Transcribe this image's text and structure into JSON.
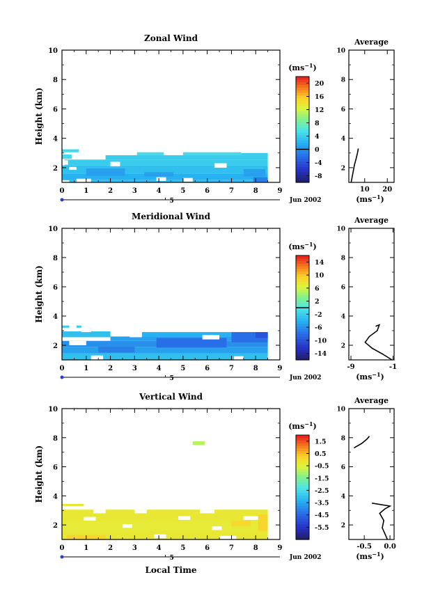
{
  "chart_data": [
    {
      "type": "heatmap",
      "title": "Zonal Wind",
      "ylabel": "Height (km)",
      "xlabel": "",
      "xlim": [
        0,
        9
      ],
      "ylim": [
        1,
        10
      ],
      "x_ticks": [
        "0",
        "1",
        "2",
        "3",
        "4",
        "5",
        "6",
        "7",
        "8",
        "9"
      ],
      "y_ticks": [
        "2",
        "4",
        "6",
        "8",
        "10"
      ],
      "date_label": "Jun 2002",
      "day_marker": "5",
      "colorbar": {
        "unit": "(ms",
        "unit_exp": "−1",
        "unit_close": ")",
        "vmin": -10,
        "vmax": 22,
        "ticks": [
          "20",
          "16",
          "12",
          "8",
          "4",
          "0",
          "-4",
          "-8"
        ],
        "tick_values": [
          20,
          16,
          12,
          8,
          4,
          0,
          -4,
          -8
        ],
        "zero_line": 0
      },
      "field": [
        {
          "x0": 0.0,
          "x1": 0.7,
          "y0": 3.05,
          "y1": 3.25,
          "v": 5
        },
        {
          "x0": 0.0,
          "x1": 0.4,
          "y0": 2.6,
          "y1": 2.9,
          "v": 5
        },
        {
          "x0": 3.1,
          "x1": 4.2,
          "y0": 2.85,
          "y1": 3.05,
          "v": 5
        },
        {
          "x0": 5.0,
          "x1": 7.4,
          "y0": 2.85,
          "y1": 3.05,
          "v": 5
        },
        {
          "x0": 7.4,
          "x1": 8.5,
          "y0": 2.85,
          "y1": 3.0,
          "v": 4
        },
        {
          "x0": 1.8,
          "x1": 8.5,
          "y0": 2.55,
          "y1": 2.85,
          "v": 4
        },
        {
          "x0": 0.1,
          "x1": 8.5,
          "y0": 2.15,
          "y1": 2.55,
          "v": 4
        },
        {
          "x0": 0.0,
          "x1": 8.5,
          "y0": 1.6,
          "y1": 2.15,
          "v": 3
        },
        {
          "x0": 0.0,
          "x1": 8.5,
          "y0": 1.15,
          "y1": 1.6,
          "v": 2
        },
        {
          "x0": 0.3,
          "x1": 8.3,
          "y0": 1.0,
          "y1": 1.15,
          "v": 3
        },
        {
          "x0": 1.0,
          "x1": 2.6,
          "y0": 1.45,
          "y1": 1.95,
          "v": 1
        },
        {
          "x0": 3.4,
          "x1": 4.6,
          "y0": 1.4,
          "y1": 1.7,
          "v": 1
        },
        {
          "x0": 7.5,
          "x1": 8.4,
          "y0": 1.4,
          "y1": 1.9,
          "v": 1
        },
        {
          "x0": 7.9,
          "x1": 8.5,
          "y0": 1.0,
          "y1": 1.35,
          "v": -1
        }
      ],
      "gaps": [
        {
          "x0": 0.0,
          "x1": 0.25,
          "y0": 2.2,
          "y1": 2.5
        },
        {
          "x0": 0.6,
          "x1": 1.2,
          "y0": 1.0,
          "y1": 1.25
        },
        {
          "x0": 2.0,
          "x1": 2.4,
          "y0": 2.1,
          "y1": 2.4
        },
        {
          "x0": 6.3,
          "x1": 6.8,
          "y0": 2.0,
          "y1": 2.3
        },
        {
          "x0": 5.0,
          "x1": 5.4,
          "y0": 1.05,
          "y1": 1.3
        },
        {
          "x0": 3.9,
          "x1": 4.3,
          "y0": 1.1,
          "y1": 1.35
        },
        {
          "x0": 0.3,
          "x1": 0.6,
          "y0": 1.85,
          "y1": 2.05
        }
      ],
      "average": {
        "title": "Average",
        "xlabel": "(ms",
        "xlabel_exp": "−1",
        "xlabel_close": ")",
        "xlim": [
          3,
          23
        ],
        "x_ticks": [
          "10",
          "20"
        ],
        "x_tick_values": [
          10,
          20
        ],
        "y_ticks": [
          "2",
          "4",
          "6",
          "8",
          "10"
        ],
        "profile": [
          [
            4.0,
            1.0
          ],
          [
            4.5,
            1.4
          ],
          [
            5.0,
            1.8
          ],
          [
            5.5,
            2.2
          ],
          [
            6.2,
            2.6
          ],
          [
            6.8,
            3.0
          ],
          [
            7.2,
            3.3
          ]
        ]
      }
    },
    {
      "type": "heatmap",
      "title": "Meridional Wind",
      "ylabel": "Height (km)",
      "xlabel": "",
      "xlim": [
        0,
        9
      ],
      "ylim": [
        1,
        10
      ],
      "x_ticks": [
        "0",
        "1",
        "2",
        "3",
        "4",
        "5",
        "6",
        "7",
        "8",
        "9"
      ],
      "y_ticks": [
        "2",
        "4",
        "6",
        "8",
        "10"
      ],
      "date_label": "Jun 2002",
      "day_marker": "5",
      "colorbar": {
        "unit": "(ms",
        "unit_exp": "−1",
        "unit_close": ")",
        "vmin": -16,
        "vmax": 16,
        "ticks": [
          "14",
          "10",
          "6",
          "2",
          "-2",
          "-6",
          "-10",
          "-14"
        ],
        "tick_values": [
          14,
          10,
          6,
          2,
          -2,
          -6,
          -10,
          -14
        ],
        "zero_line": 0
      },
      "field": [
        {
          "x0": 0.0,
          "x1": 0.3,
          "y0": 3.2,
          "y1": 3.35,
          "v": -2
        },
        {
          "x0": 0.6,
          "x1": 0.8,
          "y0": 3.2,
          "y1": 3.35,
          "v": -2
        },
        {
          "x0": 0.0,
          "x1": 2.0,
          "y0": 2.55,
          "y1": 2.95,
          "v": -3
        },
        {
          "x0": 3.3,
          "x1": 8.5,
          "y0": 2.6,
          "y1": 2.9,
          "v": -4
        },
        {
          "x0": 2.0,
          "x1": 8.5,
          "y0": 2.3,
          "y1": 2.6,
          "v": -5
        },
        {
          "x0": 0.0,
          "x1": 8.5,
          "y0": 1.9,
          "y1": 2.3,
          "v": -6
        },
        {
          "x0": 0.0,
          "x1": 8.5,
          "y0": 1.45,
          "y1": 1.9,
          "v": -5
        },
        {
          "x0": 0.0,
          "x1": 8.5,
          "y0": 1.0,
          "y1": 1.45,
          "v": -3
        },
        {
          "x0": 3.9,
          "x1": 6.8,
          "y0": 1.85,
          "y1": 2.5,
          "v": -8
        },
        {
          "x0": 7.0,
          "x1": 8.5,
          "y0": 2.2,
          "y1": 2.9,
          "v": -8
        },
        {
          "x0": 8.0,
          "x1": 8.5,
          "y0": 2.5,
          "y1": 2.9,
          "v": -10
        },
        {
          "x0": 1.5,
          "x1": 3.0,
          "y0": 1.5,
          "y1": 1.9,
          "v": -7
        }
      ],
      "gaps": [
        {
          "x0": 0.3,
          "x1": 1.0,
          "y0": 2.0,
          "y1": 2.3
        },
        {
          "x0": 1.2,
          "x1": 1.7,
          "y0": 1.0,
          "y1": 1.3
        },
        {
          "x0": 5.8,
          "x1": 6.5,
          "y0": 2.4,
          "y1": 2.7
        },
        {
          "x0": 2.8,
          "x1": 3.3,
          "y0": 2.55,
          "y1": 2.9
        },
        {
          "x0": 0.8,
          "x1": 1.2,
          "y0": 2.9,
          "y1": 3.2
        },
        {
          "x0": 7.1,
          "x1": 7.5,
          "y0": 1.0,
          "y1": 1.25
        }
      ],
      "average": {
        "title": "Average",
        "xlabel": "(ms",
        "xlabel_exp": "−1",
        "xlabel_close": ")",
        "xlim": [
          -9.4,
          -0.8
        ],
        "x_ticks": [
          "-9",
          "-1"
        ],
        "x_tick_values": [
          -9,
          -1
        ],
        "y_ticks": [
          "2",
          "4",
          "6",
          "8",
          "10"
        ],
        "profile": [
          [
            -1.2,
            1.0
          ],
          [
            -3.0,
            1.4
          ],
          [
            -5.0,
            1.8
          ],
          [
            -6.3,
            2.2
          ],
          [
            -5.5,
            2.6
          ],
          [
            -4.0,
            3.0
          ],
          [
            -3.6,
            3.4
          ],
          [
            -4.3,
            3.3
          ]
        ]
      }
    },
    {
      "type": "heatmap",
      "title": "Vertical Wind",
      "ylabel": "Height (km)",
      "xlabel": "Local Time",
      "xlim": [
        0,
        9
      ],
      "ylim": [
        1,
        10
      ],
      "x_ticks": [
        "0",
        "1",
        "2",
        "3",
        "4",
        "5",
        "6",
        "7",
        "8",
        "9"
      ],
      "y_ticks": [
        "2",
        "4",
        "6",
        "8",
        "10"
      ],
      "date_label": "Jun 2002",
      "day_marker": "5",
      "colorbar": {
        "unit": "(ms",
        "unit_exp": "−1",
        "unit_close": ")",
        "vmin": -6.5,
        "vmax": 2.0,
        "ticks": [
          "1.5",
          "0.5",
          "-0.5",
          "-1.5",
          "-2.5",
          "-3.5",
          "-4.5",
          "-5.5"
        ],
        "tick_values": [
          1.5,
          0.5,
          -0.5,
          -1.5,
          -2.5,
          -3.5,
          -4.5,
          -5.5
        ],
        "zero_line": null
      },
      "field": [
        {
          "x0": 0.0,
          "x1": 0.9,
          "y0": 3.3,
          "y1": 3.45,
          "v": -0.2
        },
        {
          "x0": 0.0,
          "x1": 8.5,
          "y0": 2.7,
          "y1": 3.05,
          "v": -0.2
        },
        {
          "x0": 0.0,
          "x1": 8.5,
          "y0": 2.2,
          "y1": 2.7,
          "v": -0.2
        },
        {
          "x0": 0.0,
          "x1": 8.5,
          "y0": 1.6,
          "y1": 2.2,
          "v": -0.3
        },
        {
          "x0": 0.0,
          "x1": 8.5,
          "y0": 1.0,
          "y1": 1.6,
          "v": -0.2
        },
        {
          "x0": 0.2,
          "x1": 1.8,
          "y0": 1.0,
          "y1": 1.3,
          "v": 0.2
        },
        {
          "x0": 8.1,
          "x1": 8.5,
          "y0": 1.6,
          "y1": 2.7,
          "v": 0.2
        },
        {
          "x0": 7.0,
          "x1": 7.8,
          "y0": 1.9,
          "y1": 2.3,
          "v": 0.1
        },
        {
          "x0": 5.4,
          "x1": 5.9,
          "y0": 7.5,
          "y1": 7.75,
          "v": -0.9
        }
      ],
      "gaps": [
        {
          "x0": 1.3,
          "x1": 1.8,
          "y0": 2.8,
          "y1": 3.05
        },
        {
          "x0": 3.0,
          "x1": 3.5,
          "y0": 2.8,
          "y1": 3.05
        },
        {
          "x0": 5.7,
          "x1": 6.3,
          "y0": 2.8,
          "y1": 3.05
        },
        {
          "x0": 0.9,
          "x1": 1.4,
          "y0": 2.3,
          "y1": 2.55
        },
        {
          "x0": 4.8,
          "x1": 5.3,
          "y0": 2.35,
          "y1": 2.6
        },
        {
          "x0": 7.5,
          "x1": 8.1,
          "y0": 2.35,
          "y1": 2.6
        },
        {
          "x0": 2.5,
          "x1": 2.9,
          "y0": 1.8,
          "y1": 2.05
        },
        {
          "x0": 6.2,
          "x1": 6.6,
          "y0": 1.65,
          "y1": 1.9
        },
        {
          "x0": 3.8,
          "x1": 4.3,
          "y0": 1.1,
          "y1": 1.35
        },
        {
          "x0": 6.5,
          "x1": 7.2,
          "y0": 1.0,
          "y1": 1.25
        }
      ],
      "average": {
        "title": "Average",
        "xlabel": "(ms",
        "xlabel_exp": "−1",
        "xlabel_close": ")",
        "xlim": [
          -0.8,
          0.08
        ],
        "x_ticks": [
          "-0.5",
          "0.0"
        ],
        "x_tick_values": [
          -0.5,
          0.0
        ],
        "y_ticks": [
          "2",
          "4",
          "6",
          "8",
          "10"
        ],
        "profile_segments": [
          [
            [
              -0.7,
              7.3
            ],
            [
              -0.55,
              7.6
            ],
            [
              -0.45,
              7.9
            ],
            [
              -0.4,
              8.1
            ]
          ],
          [
            [
              -0.05,
              1.0
            ],
            [
              -0.1,
              1.4
            ],
            [
              -0.15,
              1.8
            ],
            [
              -0.12,
              2.3
            ],
            [
              -0.2,
              2.8
            ],
            [
              -0.1,
              3.1
            ],
            [
              0.0,
              3.3
            ],
            [
              -0.35,
              3.5
            ]
          ]
        ]
      }
    }
  ]
}
